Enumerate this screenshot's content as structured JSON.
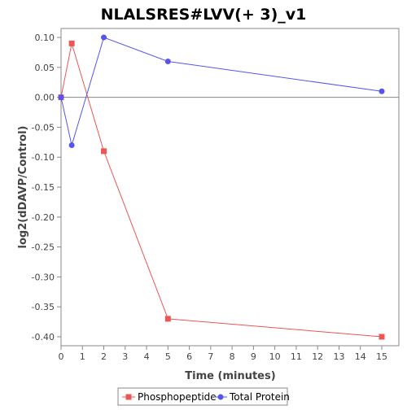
{
  "chart_data": {
    "type": "line",
    "title": "NLALSRES#LVV(+ 3)_v1",
    "xlabel": "Time (minutes)",
    "ylabel": "log2(dDAVP/Control)",
    "xlim": [
      0,
      15.8
    ],
    "ylim": [
      -0.415,
      0.115
    ],
    "xticks": [
      0,
      1,
      2,
      3,
      4,
      5,
      6,
      7,
      8,
      9,
      10,
      11,
      12,
      13,
      14,
      15
    ],
    "yticks": [
      -0.4,
      -0.35,
      -0.3,
      -0.25,
      -0.2,
      -0.15,
      -0.1,
      -0.05,
      0.0,
      0.05,
      0.1
    ],
    "ytick_labels": [
      "-0.40",
      "-0.35",
      "-0.30",
      "-0.25",
      "-0.20",
      "-0.15",
      "-0.10",
      "-0.05",
      "0.00",
      "0.05",
      "0.10"
    ],
    "zero_line": true,
    "grid": false,
    "legend_position": "bottom-center",
    "series": [
      {
        "name": "Phosphopeptide",
        "color": "#ee5555",
        "marker": "square",
        "x": [
          0,
          0.5,
          2,
          5,
          15
        ],
        "y": [
          0.0,
          0.09,
          -0.09,
          -0.37,
          -0.4
        ]
      },
      {
        "name": "Total Protein",
        "color": "#5555ee",
        "marker": "circle",
        "x": [
          0,
          0.5,
          2,
          5,
          15
        ],
        "y": [
          0.0,
          -0.08,
          0.1,
          0.06,
          0.01
        ]
      }
    ]
  }
}
